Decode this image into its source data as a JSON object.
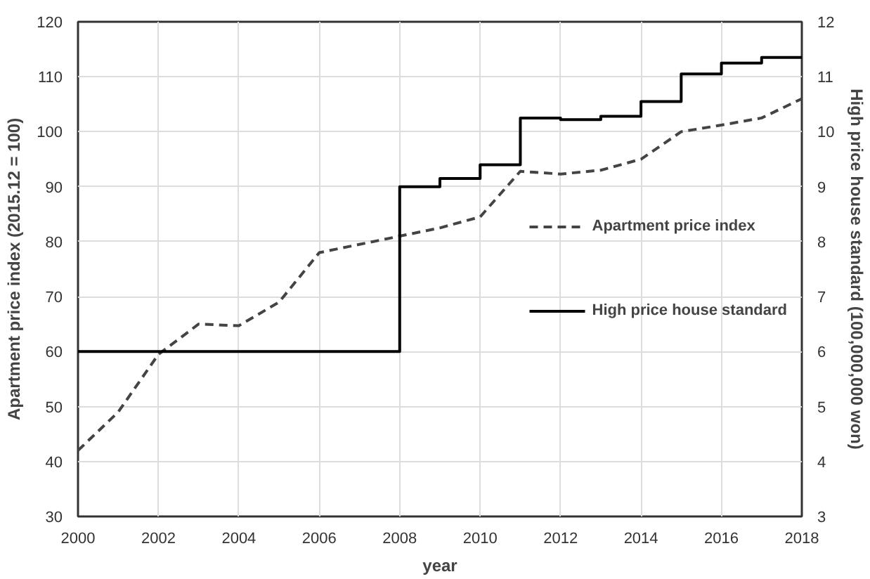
{
  "chart_data": {
    "type": "line",
    "xlabel": "year",
    "ylabel": "Apartment price index (2015.12 = 100)",
    "y2label": "High price house standard (100,000,000 won)",
    "x": [
      2000,
      2001,
      2002,
      2003,
      2004,
      2005,
      2006,
      2007,
      2008,
      2009,
      2010,
      2011,
      2012,
      2013,
      2014,
      2015,
      2016,
      2017,
      2018
    ],
    "series": [
      {
        "name": "Apartment price index",
        "color": "#444444",
        "line_style": "dashed",
        "values": [
          42,
          49,
          59.5,
          65,
          64.7,
          69,
          78,
          79.5,
          81,
          82.5,
          84.5,
          92.8,
          92.3,
          93,
          95,
          100,
          101.2,
          102.5,
          106
        ]
      },
      {
        "name": "High price house standard",
        "color": "#000000",
        "type": "step",
        "line_style": "solid",
        "axis": "y2",
        "x": [
          2000,
          2008,
          2009,
          2010,
          2011,
          2012,
          2013,
          2014,
          2015,
          2016,
          2017,
          2018
        ],
        "values": [
          6,
          9.0,
          9.15,
          9.4,
          10.25,
          10.22,
          10.28,
          10.55,
          11.05,
          11.25,
          11.35,
          11.35
        ]
      }
    ],
    "xlim": [
      2000,
      2018
    ],
    "xticks": [
      2000,
      2002,
      2004,
      2006,
      2008,
      2010,
      2012,
      2014,
      2016,
      2018
    ],
    "ylim": [
      30,
      120
    ],
    "yticks": [
      30,
      40,
      50,
      60,
      70,
      80,
      90,
      100,
      110,
      120
    ],
    "y2lim": [
      3,
      12
    ],
    "y2ticks": [
      3,
      4,
      5,
      6,
      7,
      8,
      9,
      10,
      11,
      12
    ],
    "grid": true,
    "legend": "center right",
    "marker": "none"
  }
}
